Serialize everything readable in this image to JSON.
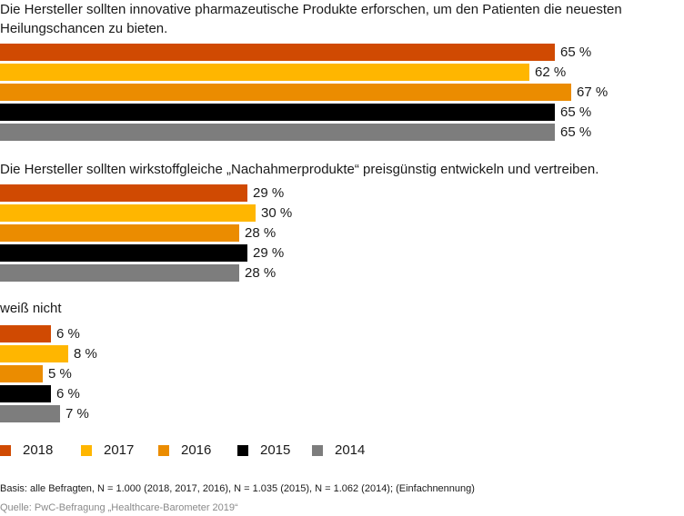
{
  "chart_data": {
    "type": "bar",
    "orientation": "horizontal",
    "unit": "%",
    "series_names": [
      "2018",
      "2017",
      "2016",
      "2015",
      "2014"
    ],
    "series_colors": [
      "#d04a02",
      "#ffb600",
      "#eb8c00",
      "#000000",
      "#7d7d7d"
    ],
    "groups": [
      {
        "title": "Die Hersteller sollten innovative pharmazeutische Produkte erforschen, um den Patienten die neuesten Heilungschancen zu bieten.",
        "values": [
          65,
          62,
          67,
          65,
          65
        ],
        "labels": [
          "65 %",
          "62 %",
          "67 %",
          "65 %",
          "65 %"
        ]
      },
      {
        "title": "Die Hersteller sollten wirkstoffgleiche „Nachahmerprodukte“ preisgünstig entwickeln und vertreiben.",
        "values": [
          29,
          30,
          28,
          29,
          28
        ],
        "labels": [
          "29 %",
          "30 %",
          "28 %",
          "29 %",
          "28 %"
        ]
      },
      {
        "title": "weiß nicht",
        "values": [
          6,
          8,
          5,
          6,
          7
        ],
        "labels": [
          "6 %",
          "8 %",
          "5 %",
          "6 %",
          "7 %"
        ]
      }
    ],
    "legend": [
      "2018",
      "2017",
      "2016",
      "2015",
      "2014"
    ],
    "legend_position": "bottom-left",
    "grid": false
  },
  "footnote": {
    "basis": "Basis: alle Befragten, N = 1.000 (2018, 2017, 2016), N = 1.035 (2015), N = 1.062 (2014); (Einfachnennung)",
    "source": "Quelle: PwC-Befragung „Healthcare-Barometer 2019“"
  }
}
